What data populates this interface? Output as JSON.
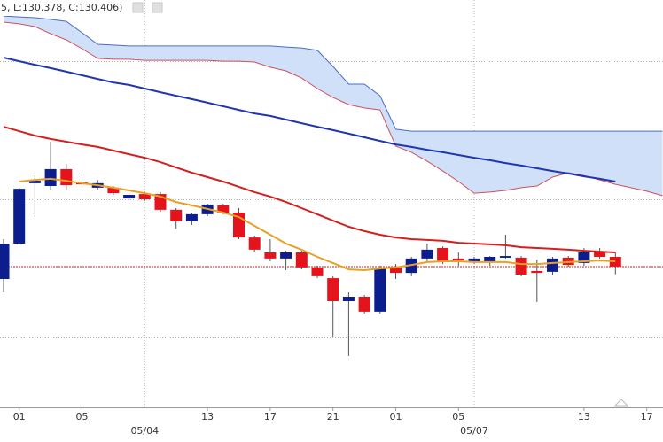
{
  "chart_data": {
    "type": "candlestick",
    "header": "5, L:130.378, C:130.406)",
    "categories": [
      null,
      "01",
      null,
      null,
      null,
      "05",
      null,
      null,
      null,
      null,
      null,
      null,
      null,
      "13",
      null,
      null,
      null,
      "17",
      null,
      null,
      null,
      "21",
      null,
      null,
      null,
      "01",
      null,
      null,
      null,
      "05",
      null,
      null,
      null,
      null,
      null,
      null,
      null,
      "13",
      null,
      null,
      null,
      "17",
      null
    ],
    "dates": [
      null,
      null,
      null,
      null,
      null,
      null,
      null,
      null,
      null,
      "05/04",
      null,
      null,
      null,
      null,
      null,
      null,
      null,
      null,
      null,
      null,
      null,
      null,
      null,
      null,
      null,
      null,
      null,
      null,
      null,
      null,
      "05/07",
      null,
      null,
      null,
      null,
      null,
      null,
      null,
      null,
      null,
      null,
      null,
      null
    ],
    "open": [
      130.361,
      130.489,
      130.707,
      130.697,
      130.758,
      130.71,
      130.691,
      130.691,
      130.652,
      130.668,
      130.668,
      130.611,
      130.569,
      130.595,
      130.627,
      130.601,
      130.511,
      130.457,
      130.435,
      130.457,
      130.403,
      130.364,
      130.281,
      130.297,
      130.243,
      130.403,
      130.383,
      130.435,
      130.473,
      130.435,
      130.422,
      130.425,
      130.438,
      130.438,
      130.39,
      130.387,
      130.438,
      130.419,
      130.46,
      130.441,
      null,
      null,
      null
    ],
    "high": [
      130.505,
      130.691,
      130.735,
      130.857,
      130.777,
      130.739,
      130.719,
      130.697,
      130.671,
      130.675,
      130.675,
      130.617,
      130.601,
      130.633,
      130.633,
      130.617,
      130.518,
      130.505,
      130.463,
      130.463,
      130.409,
      130.371,
      130.313,
      130.303,
      130.409,
      130.415,
      130.441,
      130.489,
      130.479,
      130.457,
      130.441,
      130.444,
      130.521,
      130.444,
      130.431,
      130.441,
      130.444,
      130.473,
      130.473,
      130.457,
      null,
      null,
      null
    ],
    "low": [
      130.313,
      130.486,
      130.585,
      130.681,
      130.681,
      130.691,
      130.684,
      130.665,
      130.646,
      130.643,
      130.604,
      130.543,
      130.556,
      130.588,
      130.595,
      130.505,
      130.46,
      130.425,
      130.393,
      130.396,
      130.364,
      130.153,
      130.083,
      130.236,
      130.236,
      130.361,
      130.371,
      130.425,
      130.415,
      130.409,
      130.415,
      130.409,
      130.435,
      130.371,
      130.278,
      130.377,
      130.406,
      130.409,
      130.435,
      130.378,
      null,
      null,
      null
    ],
    "close": [
      130.489,
      130.687,
      130.716,
      130.758,
      130.7,
      130.703,
      130.707,
      130.671,
      130.665,
      130.649,
      130.611,
      130.569,
      130.595,
      130.63,
      130.601,
      130.511,
      130.467,
      130.435,
      130.457,
      130.403,
      130.371,
      130.281,
      130.297,
      130.243,
      130.399,
      130.383,
      130.435,
      130.467,
      130.425,
      130.428,
      130.435,
      130.441,
      130.444,
      130.377,
      130.383,
      130.435,
      130.412,
      130.457,
      130.441,
      130.406,
      null,
      null,
      null
    ],
    "up_color": "#0c1d8e",
    "down_color": "#e5141c",
    "cloud": {
      "fill": "#cfe0f8",
      "upper_color": "#4a6cc8",
      "lower_color": "#d0505c",
      "upper": [
        131.311,
        131.308,
        131.305,
        131.299,
        131.292,
        131.251,
        131.209,
        131.206,
        131.203,
        131.203,
        131.203,
        131.203,
        131.203,
        131.203,
        131.203,
        131.203,
        131.203,
        131.203,
        131.199,
        131.196,
        131.187,
        131.129,
        131.065,
        131.065,
        131.023,
        130.902,
        130.895,
        130.895,
        130.895,
        130.895,
        130.895,
        130.895,
        130.895,
        130.895,
        130.895,
        130.895,
        130.895,
        130.895,
        130.895,
        130.895,
        130.895,
        130.895,
        130.895
      ],
      "lower": [
        131.289,
        131.283,
        131.273,
        131.247,
        131.225,
        131.193,
        131.158,
        131.155,
        131.155,
        131.151,
        131.151,
        131.151,
        131.151,
        131.151,
        131.148,
        131.148,
        131.145,
        131.126,
        131.113,
        131.087,
        131.049,
        131.017,
        130.991,
        130.979,
        130.972,
        130.841,
        130.819,
        130.787,
        130.751,
        130.713,
        130.671,
        130.675,
        130.681,
        130.691,
        130.697,
        130.729,
        130.745,
        130.735,
        130.719,
        130.703,
        130.691,
        130.678,
        130.662
      ]
    },
    "series": [
      {
        "color": "#1f36b0",
        "values": [
          131.161,
          131.148,
          131.135,
          131.123,
          131.11,
          131.097,
          131.084,
          131.071,
          131.062,
          131.049,
          131.036,
          131.023,
          131.011,
          130.998,
          130.985,
          130.972,
          130.959,
          130.95,
          130.937,
          130.924,
          130.911,
          130.899,
          130.886,
          130.873,
          130.86,
          130.847,
          130.838,
          130.828,
          130.819,
          130.809,
          130.799,
          130.79,
          130.78,
          130.771,
          130.761,
          130.751,
          130.742,
          130.732,
          130.723,
          130.713,
          null,
          null,
          null
        ]
      },
      {
        "color": "#d41f1f",
        "values": [
          130.911,
          130.895,
          130.879,
          130.867,
          130.857,
          130.847,
          130.838,
          130.825,
          130.812,
          130.799,
          130.783,
          130.764,
          130.745,
          130.729,
          130.713,
          130.694,
          130.675,
          130.659,
          130.639,
          130.617,
          130.595,
          130.572,
          130.55,
          130.534,
          130.521,
          130.511,
          130.505,
          130.502,
          130.499,
          130.492,
          130.489,
          130.486,
          130.483,
          130.476,
          130.473,
          130.47,
          130.467,
          130.463,
          130.46,
          130.457,
          null,
          null,
          null
        ]
      },
      {
        "color": "#e9a023",
        "values": [
          null,
          130.713,
          130.719,
          130.723,
          130.716,
          130.707,
          130.7,
          130.691,
          130.681,
          130.671,
          130.659,
          130.639,
          130.627,
          130.614,
          130.601,
          130.585,
          130.553,
          130.521,
          130.489,
          130.467,
          130.441,
          130.419,
          130.396,
          130.393,
          130.399,
          130.403,
          130.412,
          130.422,
          130.425,
          130.425,
          130.422,
          130.422,
          130.422,
          130.415,
          130.415,
          130.419,
          130.422,
          130.425,
          130.428,
          130.425,
          null,
          null,
          null
        ]
      }
    ],
    "price_line_color": "#c02a26",
    "ylim": [
      129.897,
      131.369
    ]
  }
}
